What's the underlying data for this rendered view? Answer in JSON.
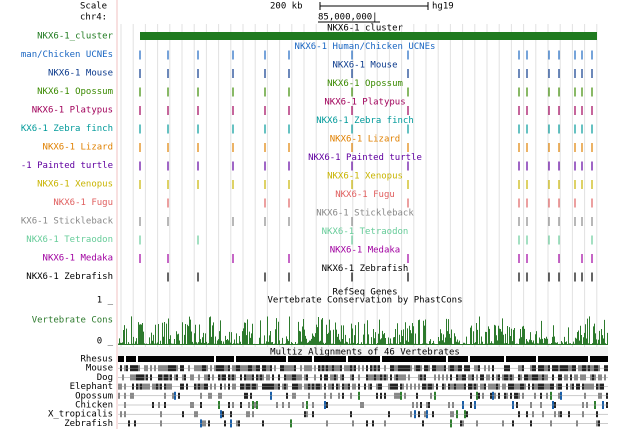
{
  "header": {
    "scale_label": "Scale",
    "chrom_label": "chr4:",
    "scale_bar": "200 kb",
    "assembly": "hg19",
    "position": "85,000,000|"
  },
  "tracks": [
    {
      "label": "NKX6-1_cluster",
      "title": "NKX6-1_cluster",
      "color": "#1f7a1f"
    },
    {
      "label": "man/Chicken UCNEs",
      "title": "NKX6-1 Human/Chicken UCNEs",
      "color": "#1a66c2"
    },
    {
      "label": "NKX6-1 Mouse",
      "title": "NKX6-1 Mouse",
      "color": "#0b3a8c"
    },
    {
      "label": "NKX6-1 Opossum",
      "title": "NKX6-1 Opossum",
      "color": "#3a8a00"
    },
    {
      "label": "NKX6-1 Platypus",
      "title": "NKX6-1 Platypus",
      "color": "#a0005a"
    },
    {
      "label": "KX6-1 Zebra finch",
      "title": "NKX6-1 Zebra finch",
      "color": "#009a9a"
    },
    {
      "label": "NKX6-1 Lizard",
      "title": "NKX6-1 Lizard",
      "color": "#e08000"
    },
    {
      "label": "-1 Painted turtle",
      "title": "NKX6-1 Painted turtle",
      "color": "#6000a0"
    },
    {
      "label": "NKX6-1 Xenopus",
      "title": "NKX6-1 Xenopus",
      "color": "#c8b400"
    },
    {
      "label": "NKX6-1 Fugu",
      "title": "NKX6-1 Fugu",
      "color": "#e06060"
    },
    {
      "label": "KX6-1 Stickleback",
      "title": "NKX6-1 Stickleback",
      "color": "#888888"
    },
    {
      "label": "NKX6-1 Tetraodon",
      "title": "NKX6-1 Tetraodon",
      "color": "#66cc99"
    },
    {
      "label": "NKX6-1 Medaka",
      "title": "NKX6-1 Medaka",
      "color": "#a000a0"
    },
    {
      "label": "NKX6-1 Zebrafish",
      "title": "NKX6-1 Zebrafish",
      "color": "#000000"
    }
  ],
  "refseq": {
    "title": "RefSeq Genes"
  },
  "conservation": {
    "title": "Vertebrate Conservation by PhastCons",
    "label": "Vertebrate Cons",
    "max_label": "1 _",
    "min_label": "0 _",
    "color": "#2d7a2d"
  },
  "multiz": {
    "title": "Multiz Alignments of 46 Vertebrates",
    "species": [
      "Rhesus",
      "Mouse",
      "Dog",
      "Elephant",
      "Opossum",
      "Chicken",
      "X_tropicalis",
      "Zebrafish"
    ]
  }
}
